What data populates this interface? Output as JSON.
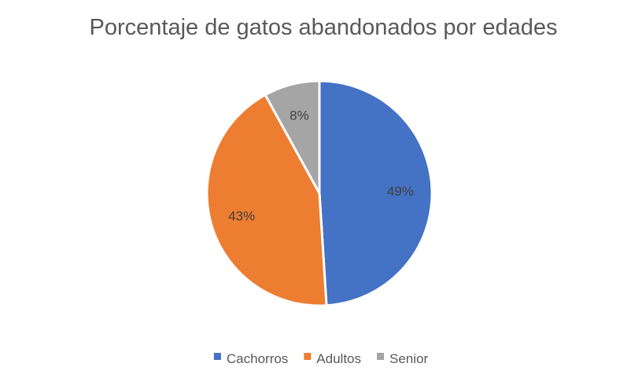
{
  "chart_data": {
    "type": "pie",
    "title": "Porcentaje de gatos abandonados por edades",
    "categories": [
      "Cachorros",
      "Adultos",
      "Senior"
    ],
    "values": [
      49,
      43,
      8
    ],
    "data_labels": [
      "49%",
      "43%",
      "8%"
    ],
    "colors": [
      "#4472C4",
      "#ED7D31",
      "#A5A5A5"
    ],
    "legend_position": "bottom",
    "start_angle": "12 o'clock",
    "direction": "clockwise"
  }
}
